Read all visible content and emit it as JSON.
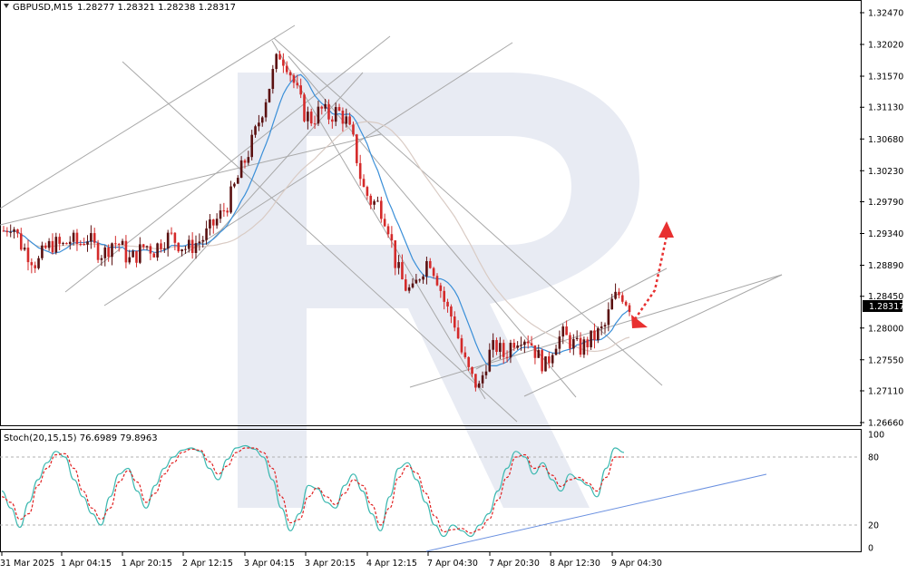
{
  "colors": {
    "background": "#ffffff",
    "bull_candle": "#5a1010",
    "bear_candle": "#d42a2a",
    "ma_fast": "#3a8fd8",
    "ma_slow": "#d8c8c0",
    "trend_line": "#a0a0a0",
    "stoch_main": "#3cb8b0",
    "stoch_signal": "#e02020",
    "stoch_trend": "#6a90e0",
    "forecast_arrow": "#e83030",
    "price_tag_bg": "#000000",
    "watermark": "#e8ebf3"
  },
  "header": {
    "symbol": "GBPUSD,M15",
    "ohlc": "1.28277 1.28321 1.28238 1.28317"
  },
  "current_price": "1.28317",
  "stoch_header": "Stoch(20,15,15) 76.6989 79.8963",
  "chart_data": [
    {
      "type": "candlestick",
      "title": "GBPUSD,M15",
      "ylim": [
        1.2666,
        1.3247
      ],
      "yticks": [
        "1.32470",
        "1.32020",
        "1.31570",
        "1.31130",
        "1.30680",
        "1.30230",
        "1.29790",
        "1.29340",
        "1.28890",
        "1.28450",
        "1.28000",
        "1.27550",
        "1.27110",
        "1.26660"
      ],
      "x_tick_labels": [
        "31 Mar 2025",
        "1 Apr 04:15",
        "1 Apr 20:15",
        "2 Apr 12:15",
        "3 Apr 04:15",
        "3 Apr 20:15",
        "4 Apr 12:15",
        "7 Apr 04:30",
        "7 Apr 20:30",
        "8 Apr 12:30",
        "9 Apr 04:30"
      ],
      "series": [
        {
          "values_close": [
            1.2938,
            1.295,
            1.292,
            1.2905,
            1.289,
            1.2912,
            1.292,
            1.2915,
            1.2925,
            1.2918,
            1.293,
            1.2912,
            1.2905,
            1.2922,
            1.2918,
            1.2895,
            1.2905,
            1.2918,
            1.291,
            1.2925,
            1.293,
            1.292,
            1.2912,
            1.292,
            1.2928,
            1.2945,
            1.296,
            1.298,
            1.301,
            1.304,
            1.307,
            1.311,
            1.315,
            1.319,
            1.3175,
            1.314,
            1.3105,
            1.3095,
            1.311,
            1.31,
            1.3108,
            1.3095,
            1.306,
            1.3,
            1.298,
            1.2975,
            1.295,
            1.289,
            1.286,
            1.285,
            1.288,
            1.29,
            1.287,
            1.283,
            1.281,
            1.276,
            1.273,
            1.2715,
            1.276,
            1.2775,
            1.276,
            1.2782,
            1.279,
            1.2785,
            1.276,
            1.2745,
            1.278,
            1.279,
            1.278,
            1.277,
            1.278,
            1.279,
            1.28,
            1.284,
            1.285,
            1.2832
          ],
          "range": [
            1.2705,
            1.3205
          ]
        }
      ],
      "xlabel": "",
      "ylabel": "",
      "grid": false
    },
    {
      "type": "line",
      "title": "Stoch(20,15,15) 76.6989 79.8963",
      "ylim": [
        0,
        100
      ],
      "yticks": [
        "100",
        "80",
        "20",
        "0"
      ],
      "levels": [
        80,
        20
      ],
      "series": [
        {
          "values": [
            50,
            35,
            18,
            40,
            60,
            75,
            85,
            80,
            60,
            45,
            30,
            20,
            45,
            65,
            70,
            50,
            35,
            55,
            70,
            80,
            86,
            88,
            85,
            70,
            60,
            78,
            88,
            90,
            87,
            80,
            60,
            35,
            15,
            30,
            55,
            52,
            40,
            35,
            55,
            65,
            50,
            30,
            15,
            45,
            70,
            75,
            60,
            40,
            20,
            10,
            20,
            15,
            10,
            20,
            30,
            50,
            70,
            85,
            80,
            65,
            75,
            60,
            50,
            65,
            60,
            55,
            45,
            70,
            88,
            84
          ]
        },
        {
          "values": [
            45,
            40,
            25,
            30,
            55,
            70,
            82,
            83,
            70,
            50,
            35,
            25,
            35,
            58,
            68,
            58,
            40,
            48,
            65,
            75,
            84,
            87,
            86,
            76,
            65,
            72,
            84,
            88,
            88,
            84,
            70,
            45,
            22,
            25,
            45,
            53,
            45,
            38,
            48,
            60,
            55,
            38,
            20,
            35,
            62,
            72,
            66,
            48,
            28,
            14,
            16,
            17,
            13,
            16,
            25,
            42,
            62,
            80,
            82,
            70,
            72,
            64,
            54,
            60,
            62,
            57,
            50,
            62,
            80,
            80
          ]
        }
      ]
    }
  ]
}
